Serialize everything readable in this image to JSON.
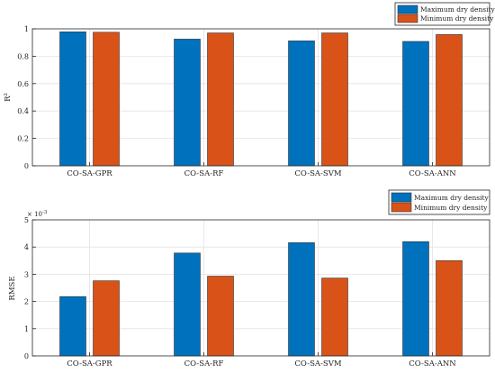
{
  "colors": {
    "series_1": "#0072BD",
    "series_2": "#D95319",
    "grid": "#e3e3e3",
    "axis": "#262626"
  },
  "chart_data": [
    {
      "type": "bar",
      "categories": [
        "CO-SA-GPR",
        "CO-SA-RF",
        "CO-SA-SVM",
        "CO-SA-ANN"
      ],
      "series": [
        {
          "name": "Maximum dry density",
          "values": [
            0.978,
            0.925,
            0.912,
            0.908
          ]
        },
        {
          "name": "Minimum dry density",
          "values": [
            0.975,
            0.97,
            0.97,
            0.958
          ]
        }
      ],
      "xlabel": "",
      "ylabel": "R²",
      "ylim": [
        0,
        1
      ],
      "yticks": [
        "0",
        "0.2",
        "0.4",
        "0.6",
        "0.8",
        "1"
      ],
      "grid": true,
      "legend": "top-right"
    },
    {
      "type": "bar",
      "categories": [
        "CO-SA-GPR",
        "CO-SA-RF",
        "CO-SA-SVM",
        "CO-SA-ANN"
      ],
      "series": [
        {
          "name": "Maximum dry density",
          "values": [
            2.18,
            3.78,
            4.16,
            4.2
          ]
        },
        {
          "name": "Minimum dry density",
          "values": [
            2.76,
            2.93,
            2.86,
            3.5
          ]
        }
      ],
      "xlabel": "",
      "ylabel": "RMSE",
      "ylim": [
        0,
        5
      ],
      "yticks": [
        "0",
        "1",
        "2",
        "3",
        "4",
        "5"
      ],
      "exponent_label": "× 10",
      "exponent_power": "-3",
      "grid": true,
      "legend": "top-right"
    }
  ]
}
